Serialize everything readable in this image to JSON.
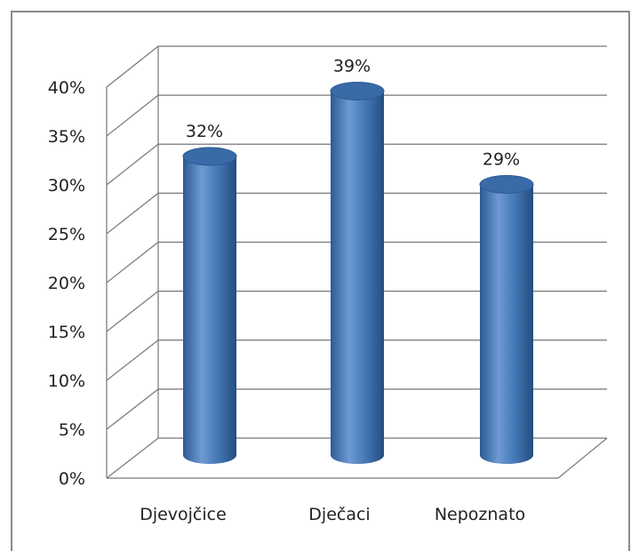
{
  "chart_data": {
    "type": "bar",
    "style": "3d-cylinder",
    "categories": [
      "Djevojčice",
      "Dječaci",
      "Nepoznato"
    ],
    "values": [
      32,
      39,
      29
    ],
    "value_labels": [
      "32%",
      "39%",
      "29%"
    ],
    "ylim": [
      0,
      40
    ],
    "ytick_labels": [
      "0%",
      "5%",
      "10%",
      "15%",
      "20%",
      "25%",
      "30%",
      "35%",
      "40%"
    ],
    "grid": true,
    "legend": "none",
    "colors": {
      "bar": "#4a7ebb",
      "bar_dark": "#2c5a94",
      "bar_light": "#8fb3e2",
      "top": "#3a6aa8",
      "grid": "#777777"
    }
  }
}
